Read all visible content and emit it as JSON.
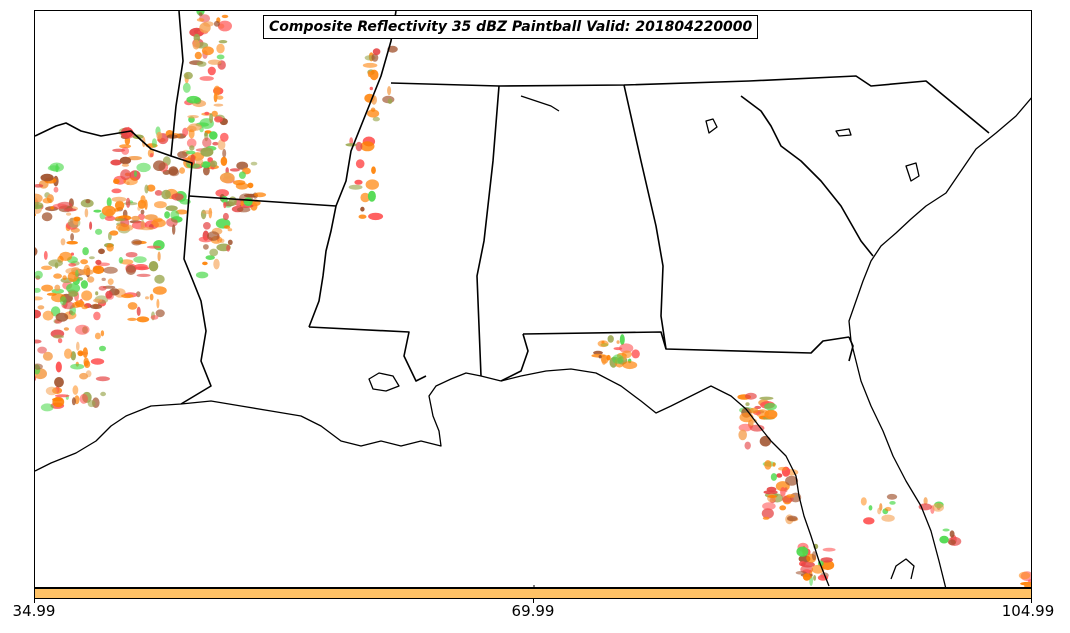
{
  "title": "Composite Reflectivity 35 dBZ Paintball Valid: 201804220000",
  "colorbar": {
    "color": "#ffc266",
    "ticks": [
      "34.99",
      "69.99",
      "104.99"
    ]
  },
  "paint_colors": [
    "#ff7f00",
    "#ff8c1a",
    "#e64545",
    "#ff5050",
    "#4cd94c",
    "#9aa64d",
    "#a0522d",
    "#f5a050"
  ]
}
